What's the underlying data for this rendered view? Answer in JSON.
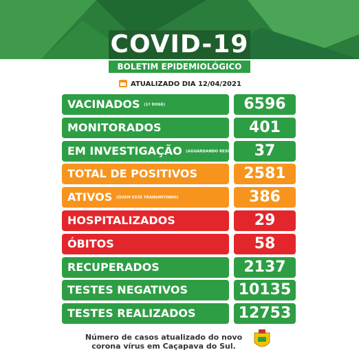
{
  "header": {
    "title": "COVID-19",
    "subtitle": "BOLETIM EPIDEMIOLÓGICO",
    "updated": "ATUALIZADO DIA 12/04/2021"
  },
  "rows": [
    {
      "label": "VACINADOS",
      "note": "(1ª DOSE)",
      "value": 6596,
      "color": "#2e9e44"
    },
    {
      "label": "MONITORADOS",
      "value": 401,
      "color": "#2e9e44"
    },
    {
      "label": "EM INVESTIGAÇÃO",
      "note": "(AGUARDANDO RESULTADO)",
      "value": 37,
      "color": "#2e9e44"
    },
    {
      "label": "TOTAL DE POSITIVOS",
      "value": 2581,
      "color": "#f7941d"
    },
    {
      "label": "ATIVOS",
      "note": "(QUEM ESTÁ TRANSMITINDO)",
      "value": 386,
      "color": "#f7941d"
    },
    {
      "label": "HOSPITALIZADOS",
      "value": 29,
      "color": "#e3262b"
    },
    {
      "label": "ÓBITOS",
      "value": 58,
      "color": "#e3262b"
    },
    {
      "label": "RECUPERADOS",
      "value": 2137,
      "color": "#2e9e44"
    },
    {
      "label": "TESTES NEGATIVOS",
      "value": 10135,
      "color": "#2e9e44"
    },
    {
      "label": "TESTES REALIZADOS",
      "value": 12753,
      "color": "#2e9e44"
    }
  ],
  "footer": {
    "lines": [
      "Número de casos atualizado do novo",
      "corona vírus em Caçapava do Sul."
    ]
  }
}
